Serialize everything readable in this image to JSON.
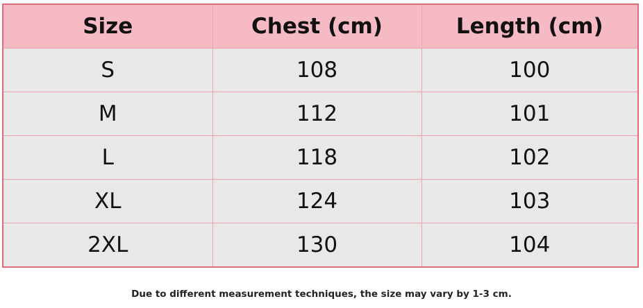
{
  "table": {
    "header": [
      "Size",
      "Chest (cm)",
      "Length (cm)"
    ],
    "rows": [
      [
        "S",
        108,
        100
      ],
      [
        "M",
        112,
        101
      ],
      [
        "L",
        118,
        102
      ],
      [
        "XL",
        124,
        103
      ],
      [
        "2XL",
        130,
        104
      ]
    ]
  },
  "note": "Due to different measurement techniques, the size may vary by 1-3 cm."
}
